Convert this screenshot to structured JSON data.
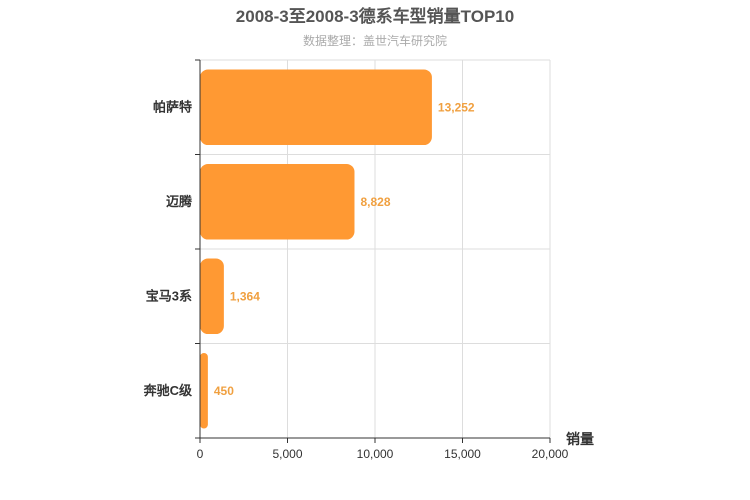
{
  "chart_data": {
    "type": "bar",
    "orientation": "horizontal",
    "title": "2008-3至2008-3德系车型销量TOP10",
    "subtitle": "数据整理：盖世汽车研究院",
    "categories": [
      "帕萨特",
      "迈腾",
      "宝马3系",
      "奔驰C级"
    ],
    "values": [
      13252,
      8828,
      1364,
      450
    ],
    "value_labels": [
      "13,252",
      "8,828",
      "1,364",
      "450"
    ],
    "xlabel": "销量",
    "ylabel": "",
    "xlim": [
      0,
      20000
    ],
    "ticks": [
      0,
      5000,
      10000,
      15000,
      20000
    ],
    "tick_labels": [
      "0",
      "5,000",
      "10,000",
      "15,000",
      "20,000"
    ],
    "grid": true,
    "bar_color": "#ff9933",
    "label_color": "#f0a040"
  }
}
